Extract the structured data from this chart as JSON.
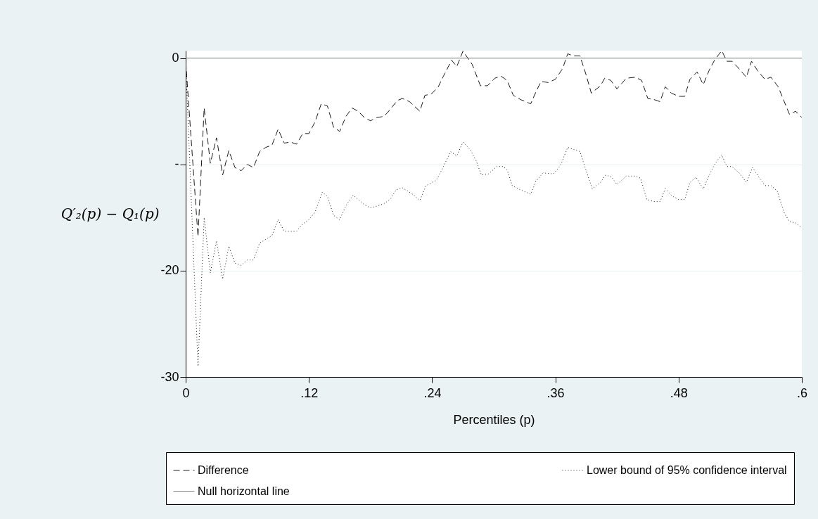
{
  "chart_data": {
    "type": "line",
    "xlabel": "Percentiles (p)",
    "ylabel": "Q′₂(p) − Q₁(p)",
    "xlim": [
      0,
      0.6
    ],
    "ylim": [
      -30,
      0.7
    ],
    "xticks": [
      0,
      {
        "value": 0.12,
        "label": ".12"
      },
      {
        "value": 0.24,
        "label": ".24"
      },
      {
        "value": 0.36,
        "label": ".36"
      },
      {
        "value": 0.48,
        "label": ".48"
      },
      {
        "value": 0.6,
        "label": ".6"
      }
    ],
    "yticks": [
      0,
      {
        "value": -10,
        "label": "-"
      },
      -20,
      -30
    ],
    "grid": "y",
    "legend": "bottom",
    "marker": "none",
    "series": [
      {
        "name": "Difference",
        "color": "#1a1a1a",
        "line_style": "dashed",
        "x": [
          0,
          0.012,
          0.018,
          0.024,
          0.03,
          0.036,
          0.042,
          0.048,
          0.054,
          0.06,
          0.066,
          0.072,
          0.078,
          0.084,
          0.09,
          0.096,
          0.102,
          0.108,
          0.114,
          0.12,
          0.126,
          0.132,
          0.138,
          0.144,
          0.15,
          0.156,
          0.162,
          0.168,
          0.174,
          0.18,
          0.186,
          0.192,
          0.196,
          0.206,
          0.211,
          0.218,
          0.228,
          0.233,
          0.239,
          0.246,
          0.251,
          0.259,
          0.264,
          0.27,
          0.274,
          0.279,
          0.287,
          0.294,
          0.301,
          0.307,
          0.313,
          0.319,
          0.326,
          0.336,
          0.341,
          0.346,
          0.353,
          0.36,
          0.367,
          0.372,
          0.378,
          0.384,
          0.39,
          0.395,
          0.404,
          0.408,
          0.414,
          0.42,
          0.429,
          0.438,
          0.444,
          0.45,
          0.456,
          0.462,
          0.467,
          0.473,
          0.48,
          0.486,
          0.491,
          0.498,
          0.504,
          0.51,
          0.515,
          0.522,
          0.527,
          0.532,
          0.537,
          0.546,
          0.551,
          0.557,
          0.564,
          0.57,
          0.577,
          0.588,
          0.594,
          0.6
        ],
        "values": [
          -0.3,
          -16.8,
          -4.7,
          -9.9,
          -7.5,
          -11.0,
          -8.7,
          -10.3,
          -10.6,
          -10.0,
          -10.3,
          -8.8,
          -8.4,
          -8.2,
          -6.7,
          -8.0,
          -7.9,
          -8.1,
          -7.1,
          -7.1,
          -6.0,
          -4.3,
          -4.5,
          -6.5,
          -6.9,
          -5.5,
          -4.7,
          -5.0,
          -5.6,
          -5.9,
          -5.6,
          -5.5,
          -5.2,
          -4.0,
          -3.8,
          -4.1,
          -5.0,
          -3.5,
          -3.4,
          -2.7,
          -1.7,
          -0.2,
          -0.8,
          0.65,
          0.1,
          -0.6,
          -2.6,
          -2.6,
          -1.9,
          -1.7,
          -2.1,
          -3.5,
          -3.9,
          -4.3,
          -3.2,
          -2.2,
          -2.3,
          -2.0,
          -1.0,
          0.4,
          0.2,
          0.2,
          -1.6,
          -3.3,
          -2.6,
          -1.9,
          -2.1,
          -2.9,
          -1.9,
          -1.8,
          -2.1,
          -3.8,
          -3.9,
          -4.1,
          -2.7,
          -3.3,
          -3.6,
          -3.6,
          -2.0,
          -1.3,
          -2.5,
          -1.1,
          -0.2,
          0.7,
          -0.3,
          -0.3,
          -0.8,
          -1.8,
          -0.3,
          -1.2,
          -2.0,
          -1.8,
          -2.7,
          -5.3,
          -5.0,
          -5.6
        ]
      },
      {
        "name": "Lower bound of 95% confidence interval",
        "color": "#1a1a1a",
        "line_style": "dotted",
        "x": [
          0,
          0.012,
          0.018,
          0.024,
          0.03,
          0.036,
          0.042,
          0.048,
          0.054,
          0.06,
          0.066,
          0.072,
          0.079,
          0.084,
          0.09,
          0.096,
          0.108,
          0.114,
          0.12,
          0.126,
          0.133,
          0.138,
          0.144,
          0.15,
          0.156,
          0.163,
          0.168,
          0.174,
          0.18,
          0.187,
          0.193,
          0.199,
          0.205,
          0.211,
          0.221,
          0.228,
          0.234,
          0.244,
          0.251,
          0.258,
          0.264,
          0.27,
          0.277,
          0.283,
          0.288,
          0.295,
          0.303,
          0.309,
          0.313,
          0.318,
          0.326,
          0.336,
          0.341,
          0.348,
          0.358,
          0.365,
          0.372,
          0.378,
          0.384,
          0.39,
          0.396,
          0.404,
          0.409,
          0.415,
          0.42,
          0.429,
          0.437,
          0.443,
          0.449,
          0.456,
          0.462,
          0.467,
          0.474,
          0.48,
          0.486,
          0.491,
          0.497,
          0.504,
          0.51,
          0.515,
          0.522,
          0.527,
          0.532,
          0.539,
          0.546,
          0.552,
          0.558,
          0.564,
          0.57,
          0.576,
          0.583,
          0.588,
          0.594,
          0.6
        ],
        "values": [
          -0.3,
          -29.0,
          -15.0,
          -20.2,
          -17.2,
          -20.8,
          -17.7,
          -19.3,
          -19.5,
          -19.0,
          -19.0,
          -17.4,
          -17.0,
          -16.7,
          -15.2,
          -16.3,
          -16.3,
          -15.6,
          -15.2,
          -14.5,
          -12.6,
          -13.0,
          -14.8,
          -15.2,
          -13.9,
          -12.9,
          -13.3,
          -13.8,
          -14.1,
          -13.9,
          -13.7,
          -13.3,
          -12.4,
          -12.2,
          -12.8,
          -13.4,
          -12.0,
          -11.5,
          -10.2,
          -8.8,
          -9.2,
          -7.9,
          -8.6,
          -9.7,
          -11.0,
          -10.9,
          -10.2,
          -10.2,
          -10.5,
          -12.0,
          -12.4,
          -12.8,
          -11.6,
          -10.8,
          -10.9,
          -10.1,
          -8.4,
          -8.6,
          -8.8,
          -10.6,
          -12.3,
          -11.7,
          -11.0,
          -11.2,
          -11.9,
          -11.1,
          -11.1,
          -11.3,
          -13.3,
          -13.5,
          -13.5,
          -12.3,
          -13.0,
          -13.3,
          -13.3,
          -11.7,
          -11.2,
          -12.3,
          -11.0,
          -10.0,
          -9.1,
          -10.2,
          -10.2,
          -10.8,
          -11.7,
          -10.3,
          -11.2,
          -12.0,
          -12.0,
          -12.5,
          -14.6,
          -15.4,
          -15.5,
          -16.0
        ]
      },
      {
        "name": "Null horizontal line",
        "color": "#888888",
        "line_style": "solid",
        "x": [
          0,
          0.6
        ],
        "values": [
          0,
          0
        ]
      }
    ]
  }
}
